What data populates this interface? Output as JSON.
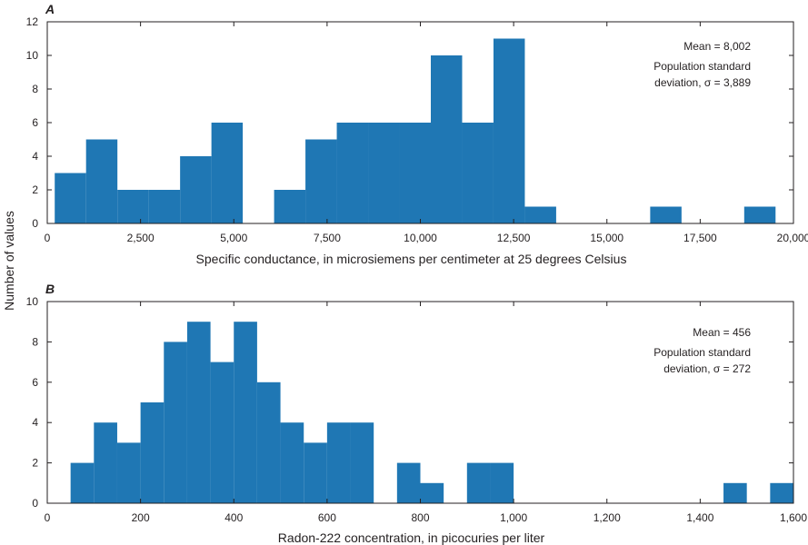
{
  "ylabel": "Number of values",
  "colors": {
    "bar": "#1f77b4",
    "axis": "#231f20"
  },
  "chart_data": [
    {
      "type": "histogram",
      "panel": "A",
      "xlabel": "Specific conductance, in microsiemens per centimeter at 25 degrees Celsius",
      "ylabel": "Number of values",
      "xlim": [
        0,
        20000
      ],
      "ylim": [
        0,
        12
      ],
      "xticks": [
        0,
        2500,
        5000,
        7500,
        10000,
        12500,
        15000,
        17500,
        20000
      ],
      "xtick_labels": [
        "0",
        "2,500",
        "5,000",
        "7,500",
        "10,000",
        "12,500",
        "15,000",
        "17,500",
        "20,000"
      ],
      "yticks": [
        0,
        2,
        4,
        6,
        8,
        10,
        12
      ],
      "ytick_labels": [
        "0",
        "2",
        "4",
        "6",
        "8",
        "10",
        "12"
      ],
      "bin_width": 840,
      "bins": [
        {
          "x0": 200,
          "x1": 1040,
          "count": 3
        },
        {
          "x0": 1040,
          "x1": 1880,
          "count": 5
        },
        {
          "x0": 1880,
          "x1": 2720,
          "count": 2
        },
        {
          "x0": 2720,
          "x1": 3560,
          "count": 2
        },
        {
          "x0": 3560,
          "x1": 4400,
          "count": 4
        },
        {
          "x0": 4400,
          "x1": 5240,
          "count": 6
        },
        {
          "x0": 5240,
          "x1": 6080,
          "count": 0
        },
        {
          "x0": 6080,
          "x1": 6920,
          "count": 2
        },
        {
          "x0": 6920,
          "x1": 7760,
          "count": 5
        },
        {
          "x0": 7760,
          "x1": 8600,
          "count": 6
        },
        {
          "x0": 8600,
          "x1": 9440,
          "count": 6
        },
        {
          "x0": 9440,
          "x1": 10280,
          "count": 6
        },
        {
          "x0": 10280,
          "x1": 11120,
          "count": 10
        },
        {
          "x0": 11120,
          "x1": 11960,
          "count": 6
        },
        {
          "x0": 11960,
          "x1": 12800,
          "count": 11
        },
        {
          "x0": 12800,
          "x1": 13640,
          "count": 1
        },
        {
          "x0": 16160,
          "x1": 17000,
          "count": 1
        },
        {
          "x0": 18680,
          "x1": 19520,
          "count": 1
        }
      ],
      "annotations": [
        "Mean = 8,002",
        "Population standard",
        "deviation, σ = 3,889"
      ]
    },
    {
      "type": "histogram",
      "panel": "B",
      "xlabel": "Radon-222 concentration, in picocuries per liter",
      "ylabel": "Number of values",
      "xlim": [
        0,
        1600
      ],
      "ylim": [
        0,
        10
      ],
      "xticks": [
        0,
        200,
        400,
        600,
        800,
        1000,
        1200,
        1400,
        1600
      ],
      "xtick_labels": [
        "0",
        "200",
        "400",
        "600",
        "800",
        "1,000",
        "1,200",
        "1,400",
        "1,600"
      ],
      "yticks": [
        0,
        2,
        4,
        6,
        8,
        10
      ],
      "ytick_labels": [
        "0",
        "2",
        "4",
        "6",
        "8",
        "10"
      ],
      "bin_width": 50,
      "bins": [
        {
          "x0": 50,
          "x1": 100,
          "count": 2
        },
        {
          "x0": 100,
          "x1": 150,
          "count": 4
        },
        {
          "x0": 150,
          "x1": 200,
          "count": 3
        },
        {
          "x0": 200,
          "x1": 250,
          "count": 5
        },
        {
          "x0": 250,
          "x1": 300,
          "count": 8
        },
        {
          "x0": 300,
          "x1": 350,
          "count": 9
        },
        {
          "x0": 350,
          "x1": 400,
          "count": 7
        },
        {
          "x0": 400,
          "x1": 450,
          "count": 9
        },
        {
          "x0": 450,
          "x1": 500,
          "count": 6
        },
        {
          "x0": 500,
          "x1": 550,
          "count": 4
        },
        {
          "x0": 550,
          "x1": 600,
          "count": 3
        },
        {
          "x0": 600,
          "x1": 650,
          "count": 4
        },
        {
          "x0": 650,
          "x1": 700,
          "count": 4
        },
        {
          "x0": 750,
          "x1": 800,
          "count": 2
        },
        {
          "x0": 800,
          "x1": 850,
          "count": 1
        },
        {
          "x0": 900,
          "x1": 950,
          "count": 2
        },
        {
          "x0": 950,
          "x1": 1000,
          "count": 2
        },
        {
          "x0": 1450,
          "x1": 1500,
          "count": 1
        },
        {
          "x0": 1550,
          "x1": 1600,
          "count": 1
        }
      ],
      "annotations": [
        "Mean = 456",
        "Population standard",
        "deviation, σ = 272"
      ]
    }
  ]
}
